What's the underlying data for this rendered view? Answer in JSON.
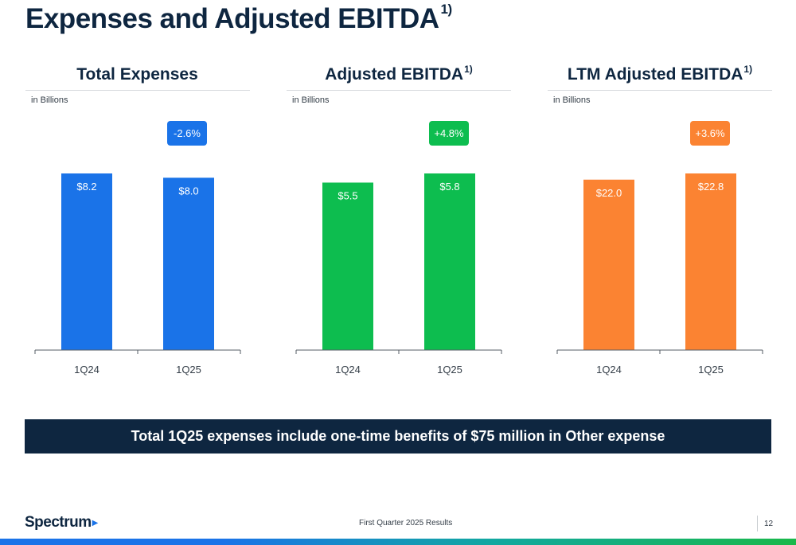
{
  "page": {
    "title": "Expenses and Adjusted EBITDA",
    "title_footnote": "1)"
  },
  "chart_data": [
    {
      "type": "bar",
      "title": "Total Expenses",
      "title_footnote": "",
      "unit_label": "in Billions",
      "categories": [
        "1Q24",
        "1Q25"
      ],
      "values": [
        8.2,
        8.0
      ],
      "data_labels": [
        "$8.2",
        "$8.0"
      ],
      "change_label": "-2.6%",
      "color": "#1a73e8",
      "grid": false
    },
    {
      "type": "bar",
      "title": "Adjusted EBITDA",
      "title_footnote": "1)",
      "unit_label": "in Billions",
      "categories": [
        "1Q24",
        "1Q25"
      ],
      "values": [
        5.5,
        5.8
      ],
      "data_labels": [
        "$5.5",
        "$5.8"
      ],
      "change_label": "+4.8%",
      "color": "#0dbd4f",
      "grid": false
    },
    {
      "type": "bar",
      "title": "LTM Adjusted EBITDA",
      "title_footnote": "1)",
      "unit_label": "in Billions",
      "categories": [
        "1Q24",
        "1Q25"
      ],
      "values": [
        22.0,
        22.8
      ],
      "data_labels": [
        "$22.0",
        "$22.8"
      ],
      "change_label": "+3.6%",
      "color": "#fb8332",
      "grid": false
    }
  ],
  "callout": {
    "text": "Total 1Q25 expenses include one-time benefits of $75 million in Other expense"
  },
  "footer": {
    "logo_text": "Spectrum",
    "caption": "First Quarter 2025 Results",
    "page_number": "12"
  },
  "colors": {
    "navy": "#0e2640",
    "blue": "#1a73e8",
    "green": "#0dbd4f",
    "orange": "#fb8332"
  }
}
